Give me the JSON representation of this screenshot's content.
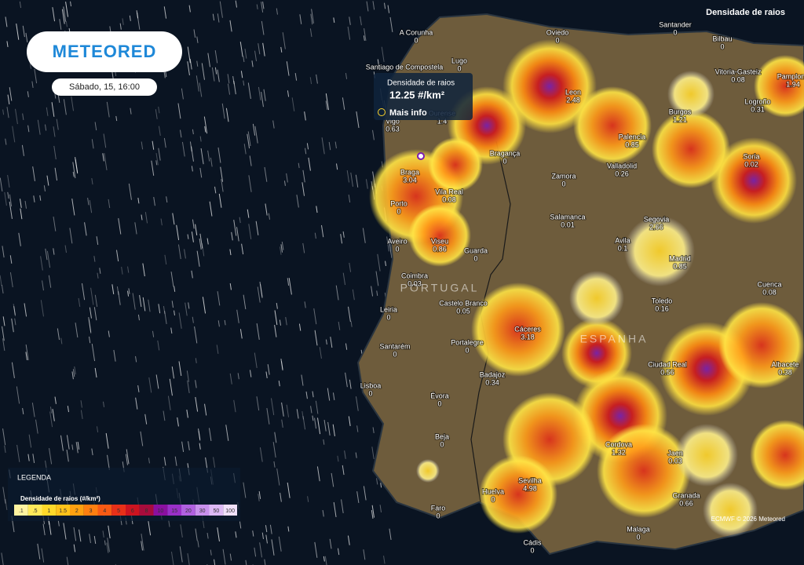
{
  "header": {
    "layer": "Densidade de raios",
    "logo": "METEORED",
    "datetime": "Sábado, 15, 16:00"
  },
  "tooltip": {
    "title": "Densidade de raios",
    "value": "12.25 #/km²",
    "link": "Mais info"
  },
  "countries": [
    "PORTUGAL",
    "ESPANHA"
  ],
  "cities": [
    {
      "name": "A Corunha",
      "value": 0
    },
    {
      "name": "Oviedo",
      "value": 0
    },
    {
      "name": "Santander",
      "value": 0
    },
    {
      "name": "Bilbau",
      "value": 0
    },
    {
      "name": "Santiago de Compostela"
    },
    {
      "name": "Lugo",
      "value": 0
    },
    {
      "name": "Vitoria-Gasteiz",
      "value": 0.08
    },
    {
      "name": "Pamplona",
      "value": 1.94
    },
    {
      "name": "Leon",
      "value": 2.48
    },
    {
      "name": "Logroño",
      "value": 0.31
    },
    {
      "name": "Ourense",
      "value": 1.4
    },
    {
      "name": "Vigo",
      "value": 0.63
    },
    {
      "name": "Burgos",
      "value": 1.21
    },
    {
      "name": "Palencia",
      "value": 0.85
    },
    {
      "name": "Braga",
      "value": 3.04
    },
    {
      "name": "Bragança",
      "value": 0
    },
    {
      "name": "Valladolid",
      "value": 0.26
    },
    {
      "name": "Soria",
      "value": 0.02
    },
    {
      "name": "Zamora",
      "value": 0
    },
    {
      "name": "Vila Real",
      "value": 0.08
    },
    {
      "name": "Porto",
      "value": 0
    },
    {
      "name": "Salamanca",
      "value": 0.01
    },
    {
      "name": "Segovia",
      "value": 2.66
    },
    {
      "name": "Aveiro",
      "value": 0
    },
    {
      "name": "Viseu",
      "value": 0.86
    },
    {
      "name": "Guarda",
      "value": 0
    },
    {
      "name": "Avila",
      "value": 0.1
    },
    {
      "name": "Madrid",
      "value": 0.85
    },
    {
      "name": "Coimbra",
      "value": 0.03
    },
    {
      "name": "Cuenca",
      "value": 0.08
    },
    {
      "name": "Castelo Branco",
      "value": 0.05
    },
    {
      "name": "Toledo",
      "value": 0.16
    },
    {
      "name": "Leiria",
      "value": 0
    },
    {
      "name": "Cáceres",
      "value": 3.18
    },
    {
      "name": "Santarém",
      "value": 0
    },
    {
      "name": "Portalegre",
      "value": 0
    },
    {
      "name": "Ciudad Real",
      "value": 0.56
    },
    {
      "name": "Albacete",
      "value": 0.38
    },
    {
      "name": "Badajoz",
      "value": 0.34
    },
    {
      "name": "Lisboa",
      "value": 0
    },
    {
      "name": "Évora",
      "value": 0
    },
    {
      "name": "Beja",
      "value": 0
    },
    {
      "name": "Cordova",
      "value": 1.32
    },
    {
      "name": "Jaen",
      "value": 0.03
    },
    {
      "name": "Sevilha",
      "value": 4.98
    },
    {
      "name": "Huelva",
      "value": 0
    },
    {
      "name": "Granada",
      "value": 0.66
    },
    {
      "name": "Faro",
      "value": 0
    },
    {
      "name": "Malaga",
      "value": 0
    },
    {
      "name": "Cádis",
      "value": 0
    }
  ],
  "legend": {
    "title": "LEGENDA",
    "subtitle": "Densidade de raios (#/km²)",
    "items": [
      {
        "label": ".1",
        "color": "#fff3a0"
      },
      {
        "label": ".5",
        "color": "#ffe95a"
      },
      {
        "label": "1",
        "color": "#ffd92a"
      },
      {
        "label": "1.5",
        "color": "#ffc21a"
      },
      {
        "label": "2",
        "color": "#ffa010"
      },
      {
        "label": "3",
        "color": "#ff7f10"
      },
      {
        "label": "4",
        "color": "#f85a14"
      },
      {
        "label": "5",
        "color": "#e83018"
      },
      {
        "label": "6",
        "color": "#cc1420"
      },
      {
        "label": "8",
        "color": "#a80c3c"
      },
      {
        "label": "10",
        "color": "#8a10a0"
      },
      {
        "label": "15",
        "color": "#9a30c8"
      },
      {
        "label": "20",
        "color": "#b060e0"
      },
      {
        "label": "30",
        "color": "#c890ec"
      },
      {
        "label": "50",
        "color": "#dcb8f4"
      },
      {
        "label": "100",
        "color": "#f0e0fa"
      }
    ]
  },
  "credits": "ECMWF © 2026 Meteored"
}
